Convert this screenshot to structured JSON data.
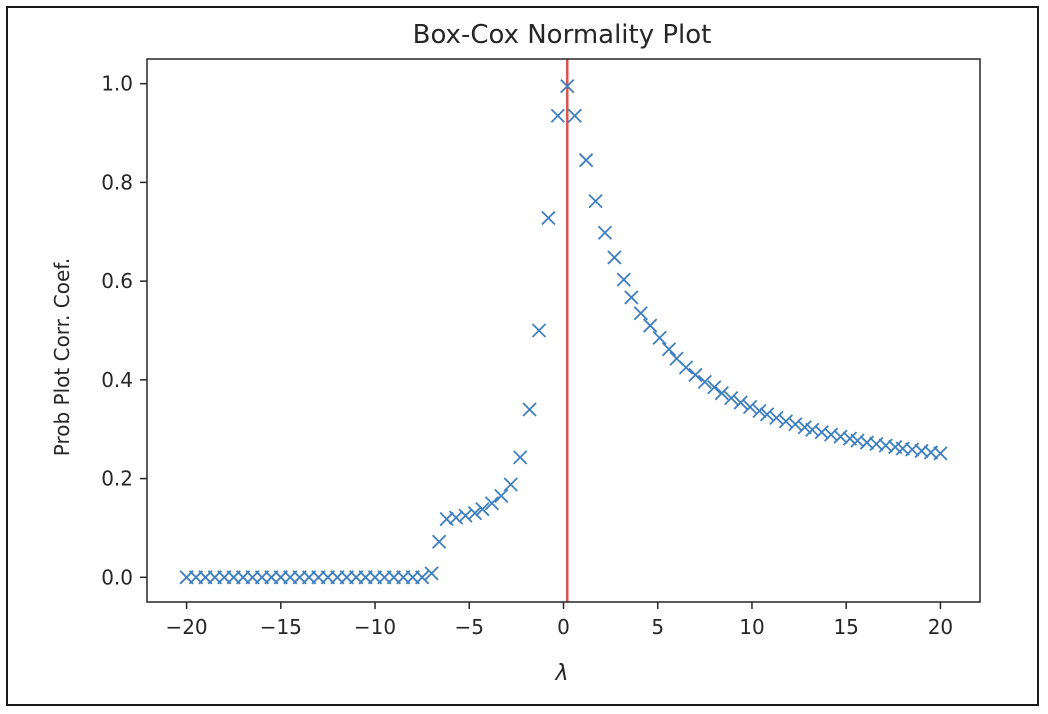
{
  "chart_data": {
    "type": "scatter",
    "title": "Box-Cox Normality Plot",
    "xlabel": "λ",
    "ylabel": "Prob Plot Corr. Coef.",
    "xlim": [
      -22.1,
      22.1
    ],
    "ylim": [
      -0.05,
      1.05
    ],
    "xticks": [
      -20,
      -15,
      -10,
      -5,
      0,
      5,
      10,
      15,
      20
    ],
    "xtick_labels": [
      "−20",
      "−15",
      "−10",
      "−5",
      "0",
      "5",
      "10",
      "15",
      "20"
    ],
    "yticks": [
      0.0,
      0.2,
      0.4,
      0.6,
      0.8,
      1.0
    ],
    "ytick_labels": [
      "0.0",
      "0.2",
      "0.4",
      "0.6",
      "0.8",
      "1.0"
    ],
    "grid": false,
    "marker": "x",
    "marker_color": "#3f7fbf",
    "vline": {
      "x": 0.2,
      "color": "#d9534f"
    },
    "x": [
      -20,
      -19.5,
      -19,
      -18.5,
      -18,
      -17.5,
      -17,
      -16.5,
      -16,
      -15.5,
      -15,
      -14.5,
      -14,
      -13.5,
      -13,
      -12.5,
      -12,
      -11.5,
      -11,
      -10.5,
      -10,
      -9.5,
      -9,
      -8.5,
      -8,
      -7.5,
      -7,
      -6.6,
      -6.2,
      -5.7,
      -5.2,
      -4.7,
      -4.3,
      -3.8,
      -3.3,
      -2.8,
      -2.3,
      -1.8,
      -1.3,
      -0.8,
      -0.3,
      0.2,
      0.6,
      1.2,
      1.7,
      2.2,
      2.7,
      3.2,
      3.6,
      4.1,
      4.6,
      5.1,
      5.6,
      6.0,
      6.5,
      7.0,
      7.5,
      8.0,
      8.4,
      8.9,
      9.4,
      9.9,
      10.4,
      10.8,
      11.3,
      11.8,
      12.3,
      12.8,
      13.2,
      13.7,
      14.2,
      14.7,
      15.2,
      15.6,
      16.1,
      16.6,
      17.1,
      17.6,
      18.0,
      18.5,
      19.0,
      19.5,
      20.0
    ],
    "y": [
      0,
      0,
      0,
      0,
      0,
      0,
      0,
      0,
      0,
      0,
      0,
      0,
      0,
      0,
      0,
      0,
      0,
      0,
      0,
      0,
      0,
      0,
      0,
      0,
      0,
      0,
      0.008,
      0.072,
      0.118,
      0.121,
      0.125,
      0.13,
      0.138,
      0.15,
      0.165,
      0.188,
      0.243,
      0.34,
      0.5,
      0.728,
      0.935,
      0.995,
      0.935,
      0.845,
      0.762,
      0.698,
      0.648,
      0.603,
      0.567,
      0.535,
      0.51,
      0.485,
      0.462,
      0.443,
      0.425,
      0.41,
      0.396,
      0.385,
      0.373,
      0.363,
      0.354,
      0.345,
      0.337,
      0.33,
      0.323,
      0.316,
      0.31,
      0.304,
      0.299,
      0.294,
      0.289,
      0.285,
      0.281,
      0.277,
      0.273,
      0.27,
      0.267,
      0.264,
      0.261,
      0.259,
      0.256,
      0.253,
      0.251
    ]
  }
}
